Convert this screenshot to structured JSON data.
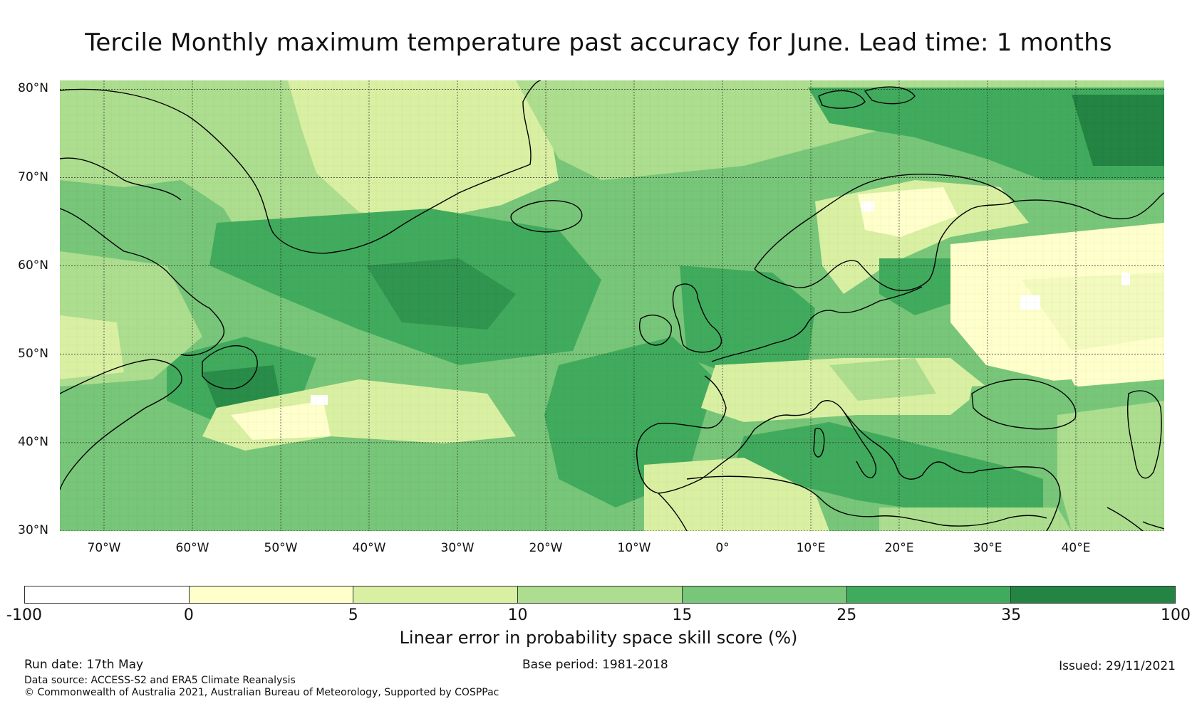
{
  "title": "Tercile Monthly maximum temperature past accuracy for June. Lead time: 1 months",
  "map": {
    "lat_labels": [
      "80°N",
      "70°N",
      "60°N",
      "50°N",
      "40°N",
      "30°N"
    ],
    "lon_labels": [
      "70°W",
      "60°W",
      "50°W",
      "40°W",
      "30°W",
      "20°W",
      "10°W",
      "0°",
      "10°E",
      "20°E",
      "30°E",
      "40°E"
    ],
    "lat_values": [
      80,
      70,
      60,
      50,
      40,
      30
    ],
    "lon_values": [
      -70,
      -60,
      -50,
      -40,
      -30,
      -20,
      -10,
      0,
      10,
      20,
      30,
      40
    ],
    "extent": {
      "lon": [
        -75,
        50
      ],
      "lat": [
        30,
        81
      ]
    },
    "land_outline_color": "#000000",
    "gridline_color": "#2a2a2a",
    "regions": [
      {
        "name": "Greenland interior",
        "class": "10-15"
      },
      {
        "name": "North Atlantic central",
        "class": "25-35"
      },
      {
        "name": "Newfoundland / Nova Scotia",
        "class": "25-35"
      },
      {
        "name": "Mid-Atlantic 40N",
        "class": "5-10"
      },
      {
        "name": "Eastern Europe / Russia",
        "class": "0-5"
      },
      {
        "name": "Mediterranean",
        "class": "25-35"
      },
      {
        "name": "Barents Sea",
        "class": "25-35"
      }
    ]
  },
  "colorbar": {
    "bounds": [
      "-100",
      "0",
      "5",
      "10",
      "15",
      "25",
      "35",
      "100"
    ],
    "colors": [
      "#ffffff",
      "#ffffcc",
      "#d9f0a3",
      "#addd8e",
      "#78c679",
      "#41ab5d",
      "#238443"
    ],
    "label": "Linear error in probability space skill score (%)"
  },
  "footer": {
    "run_date": "Run date: 17th May",
    "base_period": "Base period: 1981-2018",
    "issued": "Issued: 29/11/2021",
    "data_source": "Data source: ACCESS-S2 and ERA5 Climate Reanalysis",
    "copyright": "© Commonwealth of Australia 2021, Australian Bureau of Meteorology, Supported by COSPPac"
  }
}
